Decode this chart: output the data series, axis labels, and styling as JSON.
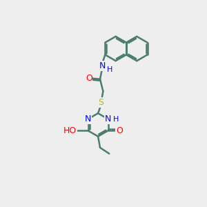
{
  "bg_color": "#eeeeee",
  "bond_color": "#4a7c6f",
  "bond_width": 1.8,
  "atom_colors": {
    "O": "#ff0000",
    "N": "#0000ff",
    "S": "#b8b800",
    "H": "#0000ff"
  },
  "font_size": 9
}
